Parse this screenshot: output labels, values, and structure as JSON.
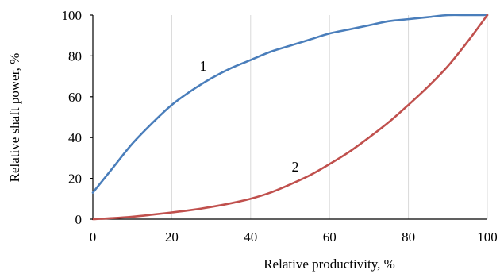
{
  "chart_data": {
    "type": "line",
    "title": "",
    "xlabel": "Relative productivity, %",
    "ylabel": "Relative shaft power, %",
    "xlim": [
      0,
      100
    ],
    "ylim": [
      0,
      100
    ],
    "x_ticks": [
      "0",
      "20",
      "40",
      "60",
      "80",
      "100"
    ],
    "y_ticks": [
      "0",
      "20",
      "40",
      "60",
      "80",
      "100"
    ],
    "grid": "vertical",
    "legend": "none",
    "series": [
      {
        "label": "1",
        "color": "#4a7ebb",
        "x": [
          0,
          5,
          10,
          15,
          20,
          25,
          30,
          35,
          40,
          45,
          50,
          55,
          60,
          65,
          70,
          75,
          80,
          85,
          90,
          95,
          100
        ],
        "y": [
          13,
          25,
          37,
          47,
          56,
          63,
          69,
          74,
          78,
          82,
          85,
          88,
          91,
          93,
          95,
          97,
          98,
          99,
          100,
          100,
          100
        ]
      },
      {
        "label": "2",
        "color": "#c0504d",
        "x": [
          0,
          5,
          10,
          15,
          20,
          25,
          30,
          35,
          40,
          45,
          50,
          55,
          60,
          65,
          70,
          75,
          80,
          85,
          90,
          95,
          100
        ],
        "y": [
          0,
          0.5,
          1.2,
          2.2,
          3.3,
          4.5,
          6,
          7.8,
          10,
          13,
          17,
          21.5,
          27,
          33,
          40,
          47.5,
          56,
          65,
          75,
          87,
          100
        ]
      }
    ]
  }
}
